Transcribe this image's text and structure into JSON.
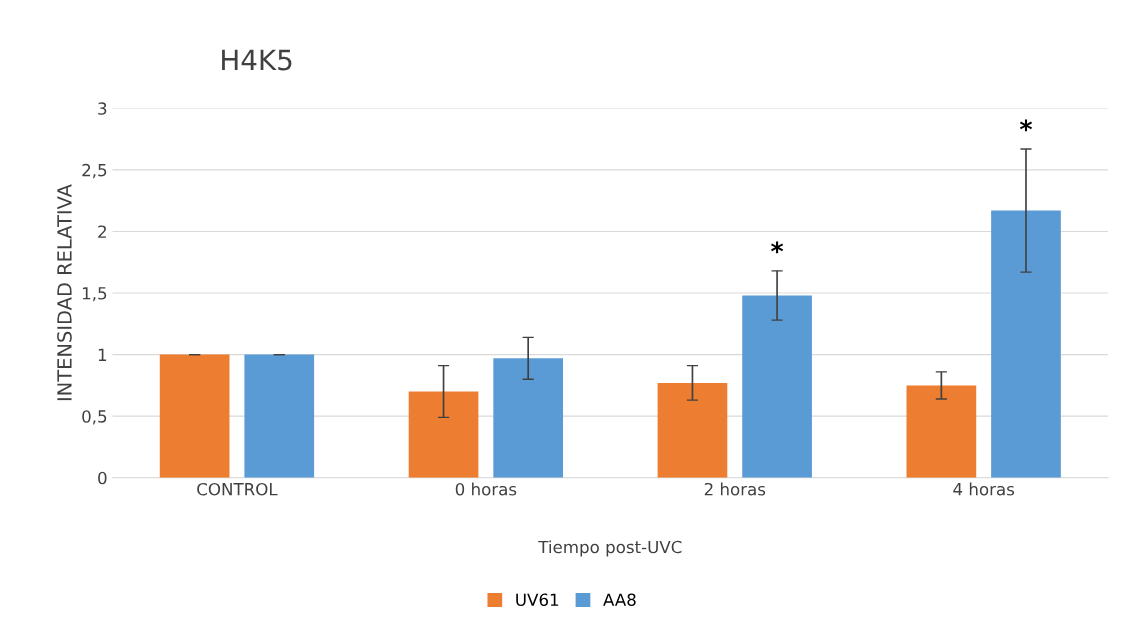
{
  "chart_data": {
    "type": "bar",
    "title": "H4K5",
    "xlabel": "Tiempo post-UVC",
    "ylabel": "INTENSIDAD RELATIVA",
    "categories": [
      "CONTROL",
      "0 horas",
      "2 horas",
      "4 horas"
    ],
    "series": [
      {
        "name": "UV61",
        "color": "#ed7d31",
        "values": [
          1,
          0.7,
          0.77,
          0.75
        ],
        "errors": [
          0,
          0.21,
          0.14,
          0.11
        ]
      },
      {
        "name": "AA8",
        "color": "#5b9bd5",
        "values": [
          1,
          0.97,
          1.48,
          2.17
        ],
        "errors": [
          0,
          0.17,
          0.2,
          0.5
        ],
        "value_labels": [
          null,
          null,
          "*",
          "*"
        ]
      }
    ],
    "ylim": [
      0,
      3
    ],
    "yticks": [
      0,
      {
        "value": 0.5,
        "label": "0,5"
      },
      1,
      {
        "value": 1.5,
        "label": "1,5"
      },
      2,
      {
        "value": 2.5,
        "label": "2,5"
      },
      3
    ],
    "grid": "y",
    "legend": "bottom"
  }
}
